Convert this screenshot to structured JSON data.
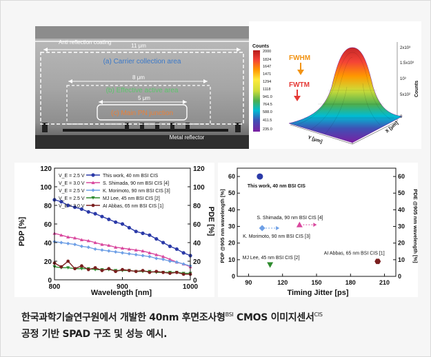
{
  "sem": {
    "labels": {
      "anti_reflection": "Anti reflection coating",
      "width_11": "11 μm",
      "carrier": "(a) Carrier collection area",
      "width_8": "8 μm",
      "effective": "(b) Effective active area",
      "width_5": "5 μm",
      "pn": "(c) Main PN junction",
      "reflector": "Metal reflector"
    }
  },
  "surface": {
    "counts_title": "Counts",
    "colorbar_ticks": [
      "2000",
      "1847",
      "1824",
      "1647",
      "1471",
      "1294",
      "1118",
      "941.0",
      "764.5",
      "588.0",
      "411.5",
      "235.0"
    ],
    "fwhm": "FWHM",
    "fwtm": "FWTM",
    "z_ticks": [
      "2x10³",
      "1.5x10³",
      "10³",
      "5x10²",
      "0"
    ],
    "z_label": "Counts",
    "y_label": "Y [μm]",
    "x_label": "X [μm]",
    "colors": [
      "#7b1fa2",
      "#3f51b5",
      "#00bcd4",
      "#4caf50",
      "#cddc39",
      "#ffeb3b",
      "#ff9800",
      "#f44336",
      "#b71c1c"
    ]
  },
  "chart_data": [
    {
      "type": "line",
      "xlabel": "Wavelength [nm]",
      "ylabel": "PDP [%]",
      "ylabel_right": "PDE [%]",
      "xlim": [
        800,
        1000
      ],
      "ylim": [
        0,
        120
      ],
      "x_ticks": [
        "800",
        "900",
        "1000"
      ],
      "y_ticks": [
        "0",
        "20",
        "40",
        "60",
        "80",
        "100",
        "120"
      ],
      "series": [
        {
          "name": "This work, 40 nm BSI CIS",
          "ve": "V_E = 2.5 V",
          "color": "#2b3aa8",
          "marker": "circle",
          "x": [
            800,
            810,
            820,
            830,
            840,
            850,
            860,
            870,
            880,
            890,
            900,
            910,
            920,
            930,
            940,
            950,
            960,
            970,
            980,
            990,
            1000
          ],
          "y": [
            86,
            84,
            80,
            78,
            76,
            73,
            71,
            68,
            65,
            62,
            60,
            56,
            52,
            50,
            48,
            44,
            40,
            36,
            33,
            29,
            26
          ]
        },
        {
          "name": "S. Shimada, 90 nm BSI CIS [4]",
          "ve": "V_E = 3.0 V",
          "color": "#d9489e",
          "marker": "triangle",
          "x": [
            800,
            810,
            820,
            830,
            840,
            850,
            860,
            870,
            880,
            890,
            900,
            910,
            920,
            930,
            940,
            950,
            960,
            970,
            980,
            990,
            1000
          ],
          "y": [
            50,
            48,
            46,
            45,
            43,
            42,
            40,
            38,
            37,
            35,
            34,
            33,
            32,
            31,
            29,
            27,
            25,
            22,
            19,
            17,
            14
          ]
        },
        {
          "name": "K. Morimoto, 90 nm BSI CIS [3]",
          "ve": "V_E = 2.5 V",
          "color": "#6fa0e6",
          "marker": "diamond",
          "x": [
            800,
            810,
            820,
            830,
            840,
            850,
            860,
            870,
            880,
            890,
            900,
            910,
            920,
            930,
            940,
            950,
            960,
            970,
            980,
            990,
            1000
          ],
          "y": [
            41,
            40,
            39,
            38,
            36,
            35,
            33,
            32,
            31,
            30,
            29,
            28,
            27,
            26,
            25,
            23,
            22,
            20,
            19,
            17,
            15
          ]
        },
        {
          "name": "MJ Lee, 45 nm BSI CIS [2]",
          "ve": "V_E = 2.5 V",
          "color": "#2e8b2e",
          "marker": "down-triangle",
          "x": [
            800,
            810,
            820,
            830,
            840,
            850,
            860,
            870,
            880,
            890,
            900,
            910,
            920,
            930,
            940,
            950,
            960,
            970,
            980,
            990,
            1000
          ],
          "y": [
            14,
            13,
            13,
            12,
            12,
            12,
            11,
            11,
            11,
            10,
            10,
            10,
            9,
            9,
            9,
            8,
            8,
            8,
            8,
            7,
            7
          ]
        },
        {
          "name": "AI Abbas, 65 nm BSI CIS [1]",
          "ve": "V_E = 3.0 V",
          "color": "#7a1f1f",
          "marker": "hexagon",
          "x": [
            800,
            810,
            820,
            830,
            840,
            850,
            860,
            870,
            880,
            890,
            900,
            910,
            920,
            930,
            940,
            950,
            960,
            970,
            980,
            990,
            1000
          ],
          "y": [
            18,
            14,
            20,
            12,
            15,
            11,
            13,
            10,
            12,
            9,
            11,
            10,
            9,
            10,
            8,
            9,
            8,
            7,
            8,
            6,
            6
          ]
        }
      ]
    },
    {
      "type": "scatter",
      "xlabel": "Timing Jitter [ps]",
      "ylabel": "PDP @905 nm wavelength [%]",
      "ylabel_right": "PDE @905 nm wavelength [%]",
      "xlim": [
        80,
        220
      ],
      "ylim": [
        0,
        65
      ],
      "x_ticks": [
        "90",
        "120",
        "150",
        "180",
        "210"
      ],
      "y_ticks": [
        "0",
        "10",
        "20",
        "30",
        "40",
        "50",
        "60"
      ],
      "points": [
        {
          "label": "This work, 40 nm BSI CIS",
          "x": 100,
          "y": 60,
          "color": "#2b3aa8",
          "marker": "circle"
        },
        {
          "label": "S. Shimada, 90 nm BSI CIS [4]",
          "x": 135,
          "y": 31,
          "color": "#d9489e",
          "marker": "triangle"
        },
        {
          "label": "K. Morimoto, 90 nm BSI CIS [3]",
          "x": 102,
          "y": 29,
          "color": "#6fa0e6",
          "marker": "diamond"
        },
        {
          "label": "MJ Lee, 45 nm BSI CIS [2]",
          "x": 109,
          "y": 7,
          "color": "#2e8b2e",
          "marker": "down-triangle"
        },
        {
          "label": "AI Abbas, 65 nm BSI CIS [1]",
          "x": 204,
          "y": 9,
          "color": "#7a1f1f",
          "marker": "hexagon"
        }
      ]
    }
  ],
  "caption": {
    "line1_a": "한국과학기술연구원에서 개발한 40nm 후면조사형",
    "bsi": "BSI",
    "line1_b": " CMOS 이미지센서",
    "cis": "CIS",
    "line2": "공정 기반 SPAD 구조 및 성능 예시."
  }
}
